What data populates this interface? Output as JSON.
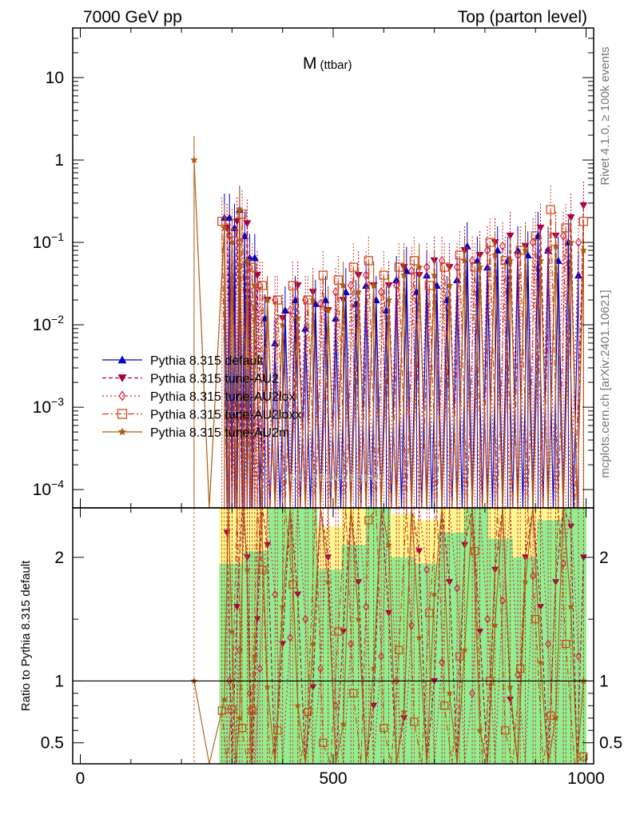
{
  "header": {
    "left": "7000 GeV pp",
    "right": "Top (parton level)"
  },
  "side_text": {
    "rivet": "Rivet 4.1.0, ≥ 100k events",
    "mcplots": "mcplots.cern.ch [arXiv:2401.10621]"
  },
  "chart_data": {
    "type": "line",
    "title": "M",
    "title_sub": "(ttbar)",
    "watermark": "MC_TTBAR/TTBAR",
    "xlim": [
      -15,
      1015
    ],
    "xticks": [
      0,
      500,
      1000
    ],
    "main": {
      "yscale": "log",
      "ylim": [
        6e-05,
        40
      ],
      "major_ticks": [
        0.0001,
        0.001,
        0.01,
        0.1,
        1,
        10
      ],
      "tick_labels": [
        {
          "base": "10",
          "exp": "−4"
        },
        {
          "base": "10",
          "exp": "−3"
        },
        {
          "base": "10",
          "exp": "−2"
        },
        {
          "base": "10",
          "exp": "−1"
        },
        {
          "base": "1",
          "exp": ""
        },
        {
          "base": "10",
          "exp": ""
        }
      ]
    },
    "ratio": {
      "ylabel": "Ratio to Pythia 8.315 default",
      "ylim": [
        0.33,
        2.4
      ],
      "ticks": [
        0.5,
        1,
        2
      ],
      "tick_labels": [
        "0.5",
        "1",
        "2"
      ],
      "band": {
        "x": [
          275,
          1000
        ],
        "green_top": [
          1.95,
          2.05,
          2.4,
          2.4,
          1.9,
          2.1,
          2.4,
          2.0,
          1.95,
          2.2,
          2.4,
          2.15,
          2.0,
          2.3,
          2.4
        ],
        "yellow_top": [
          2.4,
          2.4,
          2.4,
          2.4,
          2.25,
          2.4,
          2.4,
          2.35,
          2.3,
          2.4,
          2.4,
          2.4,
          2.4,
          2.4,
          2.4
        ]
      }
    },
    "series": [
      {
        "name": "Pythia 8.315 default",
        "color": "#0000cc",
        "marker": "triangle-up",
        "dash": "",
        "x": [
          285,
          295,
          305,
          315,
          325,
          335,
          345,
          365,
          385,
          405,
          425,
          445,
          465,
          485,
          505,
          525,
          545,
          565,
          585,
          605,
          625,
          645,
          665,
          685,
          705,
          725,
          745,
          765,
          785,
          805,
          825,
          845,
          865,
          885,
          905,
          925,
          945,
          965,
          985
        ],
        "y": [
          0.2,
          0.2,
          0.15,
          0.25,
          0.12,
          0.065,
          0.065,
          0.012,
          0.006,
          0.015,
          0.02,
          0.009,
          0.018,
          0.02,
          0.012,
          0.025,
          0.018,
          0.03,
          0.02,
          0.015,
          0.035,
          0.045,
          0.025,
          0.04,
          0.03,
          0.02,
          0.035,
          0.09,
          0.06,
          0.05,
          0.08,
          0.06,
          0.08,
          0.07,
          0.12,
          0.08,
          0.06,
          0.1,
          0.04
        ],
        "ratio": []
      },
      {
        "name": "Pythia 8.315 tune-AU2",
        "color": "#aa0044",
        "marker": "triangle-down",
        "dash": "5,3",
        "x": [
          290,
          310,
          330,
          350,
          370,
          400,
          430,
          460,
          490,
          520,
          550,
          580,
          610,
          640,
          670,
          700,
          730,
          760,
          790,
          820,
          850,
          880,
          910,
          940,
          970,
          995
        ],
        "y": [
          0.15,
          0.18,
          0.17,
          0.04,
          0.02,
          0.012,
          0.03,
          0.025,
          0.015,
          0.02,
          0.04,
          0.03,
          0.03,
          0.05,
          0.04,
          0.06,
          0.05,
          0.08,
          0.07,
          0.1,
          0.12,
          0.09,
          0.15,
          0.12,
          0.2,
          0.28
        ],
        "ratio": [
          2.2,
          1.6,
          2.0,
          1.5,
          2.1,
          1.3,
          1.7,
          0.95,
          2.0,
          1.4,
          1.8,
          0.8,
          1.55,
          0.7,
          2.05,
          1.0,
          1.8,
          2.1,
          1.4,
          1.9,
          0.85,
          2.0,
          1.6,
          1.8,
          2.25,
          2.0
        ]
      },
      {
        "name": "Pythia 8.315 tune-AU2lox",
        "color": "#cc2244",
        "marker": "diamond-open",
        "dash": "2,3",
        "x": [
          295,
          315,
          335,
          355,
          385,
          415,
          445,
          475,
          505,
          535,
          565,
          595,
          625,
          655,
          685,
          715,
          745,
          775,
          805,
          835,
          865,
          895,
          925,
          955,
          985
        ],
        "y": [
          0.12,
          0.1,
          0.05,
          0.03,
          0.02,
          0.015,
          0.02,
          0.018,
          0.025,
          0.03,
          0.04,
          0.025,
          0.03,
          0.045,
          0.05,
          0.06,
          0.05,
          0.06,
          0.08,
          0.09,
          0.07,
          0.1,
          0.08,
          0.12,
          0.1
        ],
        "ratio": [
          1.0,
          1.25,
          0.9,
          1.1,
          1.7,
          1.35,
          1.5,
          1.1,
          0.8,
          1.3,
          1.6,
          1.2,
          1.0,
          1.45,
          1.9,
          1.15,
          1.75,
          0.9,
          1.5,
          1.65,
          1.05,
          1.85,
          1.3,
          1.95,
          1.2
        ]
      },
      {
        "name": "Pythia 8.315 tune-AU2loxx",
        "color": "#cc4411",
        "marker": "square-open",
        "dash": "8,3,2,3",
        "x": [
          280,
          300,
          320,
          340,
          360,
          390,
          420,
          450,
          480,
          510,
          540,
          570,
          600,
          630,
          660,
          690,
          720,
          750,
          780,
          810,
          840,
          870,
          900,
          930,
          960,
          995
        ],
        "y": [
          0.18,
          0.13,
          0.22,
          0.05,
          0.03,
          0.02,
          0.03,
          0.02,
          0.04,
          0.035,
          0.05,
          0.06,
          0.04,
          0.05,
          0.06,
          0.03,
          0.05,
          0.07,
          0.05,
          0.1,
          0.06,
          0.08,
          0.12,
          0.25,
          0.15,
          0.18
        ],
        "ratio": [
          0.76,
          0.77,
          0.62,
          0.76,
          1.9,
          0.6,
          1.78,
          0.75,
          0.5,
          1.4,
          0.9,
          2.3,
          0.62,
          1.25,
          0.67,
          1.55,
          0.8,
          1.2,
          2.05,
          1.0,
          0.6,
          1.1,
          1.5,
          0.72,
          1.3,
          0.39
        ]
      },
      {
        "name": "Pythia 8.315 tune-AU2m",
        "color": "#b05a10",
        "marker": "star",
        "dash": "",
        "x": [
          225,
          285,
          300,
          315,
          330,
          345,
          370,
          400,
          430,
          460,
          490,
          520,
          550,
          580,
          610,
          640,
          670,
          700,
          730,
          760,
          790,
          820,
          850,
          880,
          910,
          940,
          970,
          995
        ],
        "y": [
          1.0,
          0.15,
          0.1,
          0.25,
          0.06,
          0.03,
          0.02,
          0.01,
          0.012,
          0.02,
          0.015,
          0.03,
          0.025,
          0.03,
          0.02,
          0.04,
          0.05,
          0.04,
          0.03,
          0.06,
          0.05,
          0.07,
          0.06,
          0.08,
          0.06,
          0.09,
          0.1,
          0.08
        ],
        "ratio": [
          1.0,
          0.85,
          1.4,
          0.7,
          1.9,
          1.2,
          0.95,
          1.6,
          0.8,
          1.3,
          1.8,
          0.65,
          1.5,
          1.1,
          2.1,
          0.75,
          1.35,
          1.7,
          0.9,
          1.25,
          0.6,
          1.45,
          0.95,
          1.8,
          1.15,
          0.7,
          1.6,
          1.0
        ]
      }
    ]
  }
}
